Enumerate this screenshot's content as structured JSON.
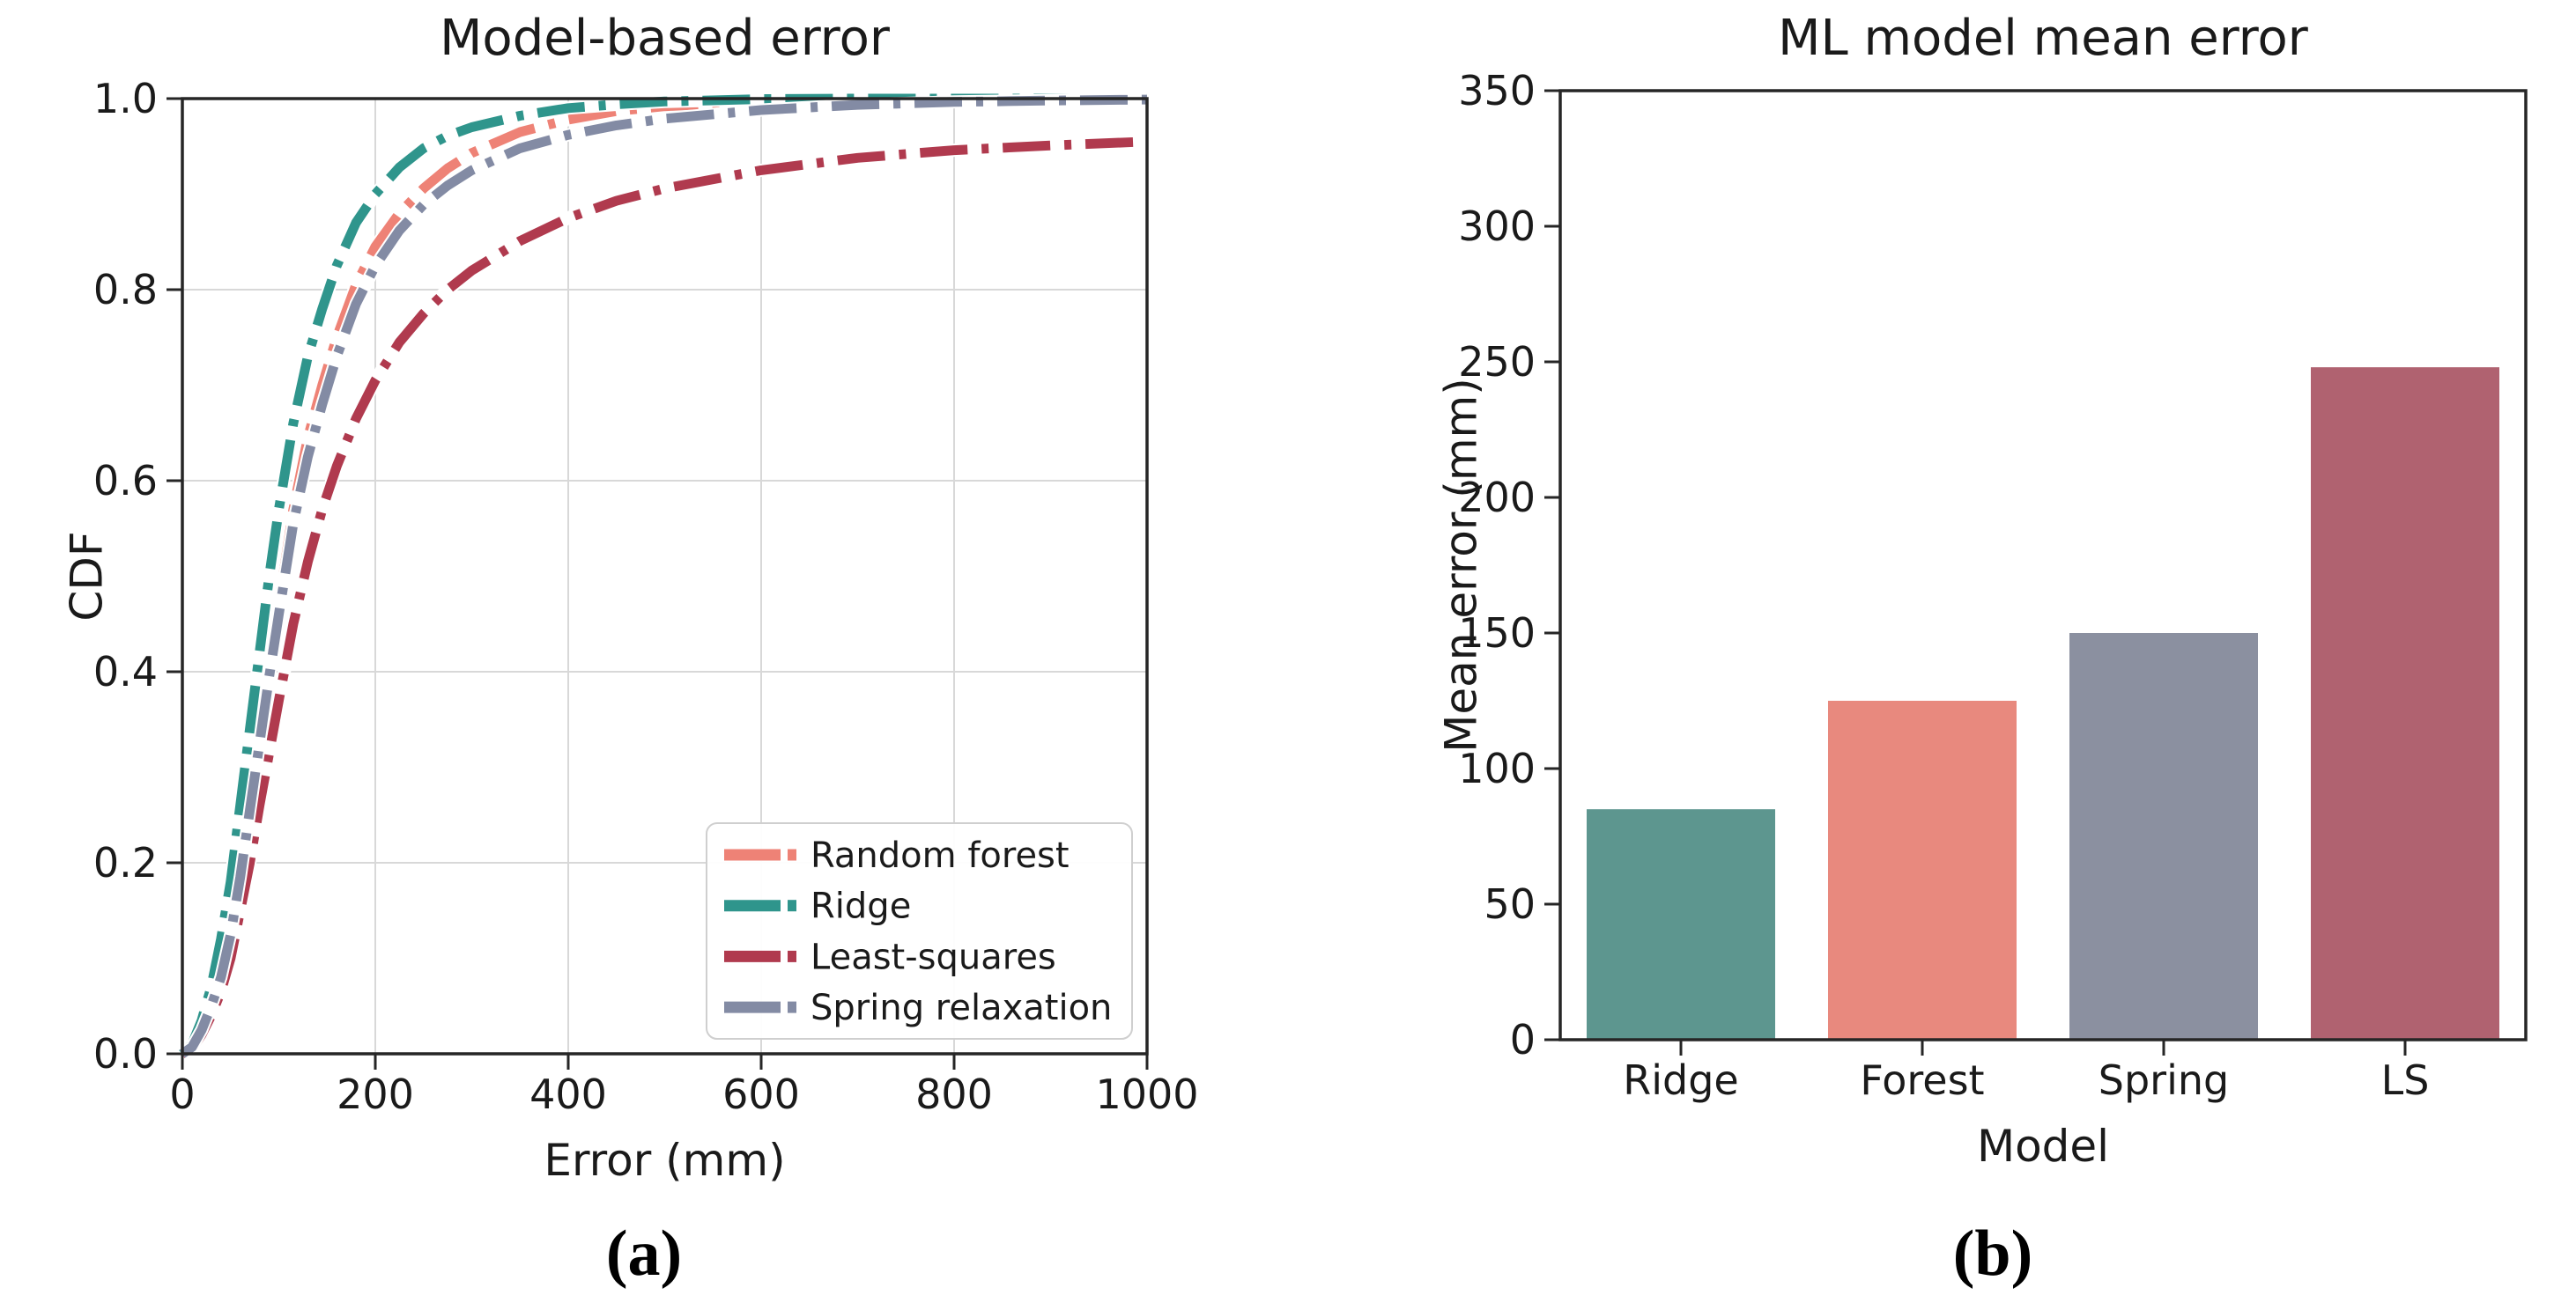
{
  "page": {
    "background": "#ffffff",
    "text_color": "#1a1a1a",
    "spine_color": "#262626",
    "grid_color": "#d8d8d8"
  },
  "chart_data": [
    {
      "type": "line",
      "title": "Model-based error",
      "xlabel": "Error (mm)",
      "ylabel": "CDF",
      "caption": "(a)",
      "xlim": [
        0,
        1000
      ],
      "ylim": [
        0,
        1.0
      ],
      "xticks": [
        0,
        200,
        400,
        600,
        800,
        1000
      ],
      "yticks": [
        0.0,
        0.2,
        0.4,
        0.6,
        0.8,
        1.0
      ],
      "ytick_labels": [
        "0.0",
        "0.2",
        "0.4",
        "0.6",
        "0.8",
        "1.0"
      ],
      "grid": true,
      "line_style": "dashed",
      "legend": {
        "position": "lower right",
        "items": [
          "Random forest",
          "Ridge",
          "Least-squares",
          "Spring relaxation"
        ]
      },
      "x": [
        0,
        10,
        20,
        30,
        40,
        50,
        60,
        70,
        80,
        90,
        100,
        115,
        130,
        145,
        160,
        180,
        200,
        225,
        250,
        275,
        300,
        350,
        400,
        450,
        500,
        600,
        700,
        800,
        900,
        1000
      ],
      "series": [
        {
          "name": "Random forest",
          "color": "#ee8276",
          "values": [
            0,
            0.007,
            0.025,
            0.05,
            0.085,
            0.13,
            0.19,
            0.26,
            0.33,
            0.4,
            0.47,
            0.57,
            0.645,
            0.7,
            0.75,
            0.805,
            0.845,
            0.88,
            0.906,
            0.927,
            0.943,
            0.965,
            0.978,
            0.987,
            0.992,
            0.997,
            0.999,
            1,
            1,
            1
          ]
        },
        {
          "name": "Ridge",
          "color": "#2f958c",
          "values": [
            0,
            0.01,
            0.035,
            0.07,
            0.12,
            0.18,
            0.26,
            0.34,
            0.42,
            0.5,
            0.57,
            0.66,
            0.73,
            0.78,
            0.825,
            0.87,
            0.9,
            0.928,
            0.948,
            0.961,
            0.97,
            0.982,
            0.99,
            0.994,
            0.997,
            0.9995,
            1,
            1,
            1,
            1
          ]
        },
        {
          "name": "Least-squares",
          "color": "#b03a4e",
          "values": [
            0,
            0.005,
            0.02,
            0.04,
            0.065,
            0.1,
            0.15,
            0.2,
            0.26,
            0.315,
            0.37,
            0.45,
            0.515,
            0.57,
            0.615,
            0.665,
            0.705,
            0.745,
            0.775,
            0.8,
            0.82,
            0.851,
            0.875,
            0.893,
            0.906,
            0.925,
            0.938,
            0.946,
            0.951,
            0.955
          ]
        },
        {
          "name": "Spring relaxation",
          "color": "#838ba4",
          "values": [
            0,
            0.007,
            0.025,
            0.05,
            0.08,
            0.125,
            0.185,
            0.255,
            0.325,
            0.395,
            0.46,
            0.555,
            0.625,
            0.68,
            0.73,
            0.785,
            0.825,
            0.862,
            0.889,
            0.909,
            0.925,
            0.948,
            0.962,
            0.972,
            0.979,
            0.988,
            0.9935,
            0.9965,
            0.998,
            0.999
          ]
        }
      ]
    },
    {
      "type": "bar",
      "title": "ML model mean error",
      "xlabel": "Model",
      "ylabel": "Mean error (mm)",
      "caption": "(b)",
      "categories": [
        "Ridge",
        "Forest",
        "Spring",
        "LS"
      ],
      "values": [
        85,
        125,
        150,
        248
      ],
      "colors": [
        "#5d968f",
        "#e8897e",
        "#8b90a0",
        "#b06270"
      ],
      "ylim": [
        0,
        350
      ],
      "yticks": [
        0,
        50,
        100,
        150,
        200,
        250,
        300,
        350
      ],
      "grid": false
    }
  ]
}
